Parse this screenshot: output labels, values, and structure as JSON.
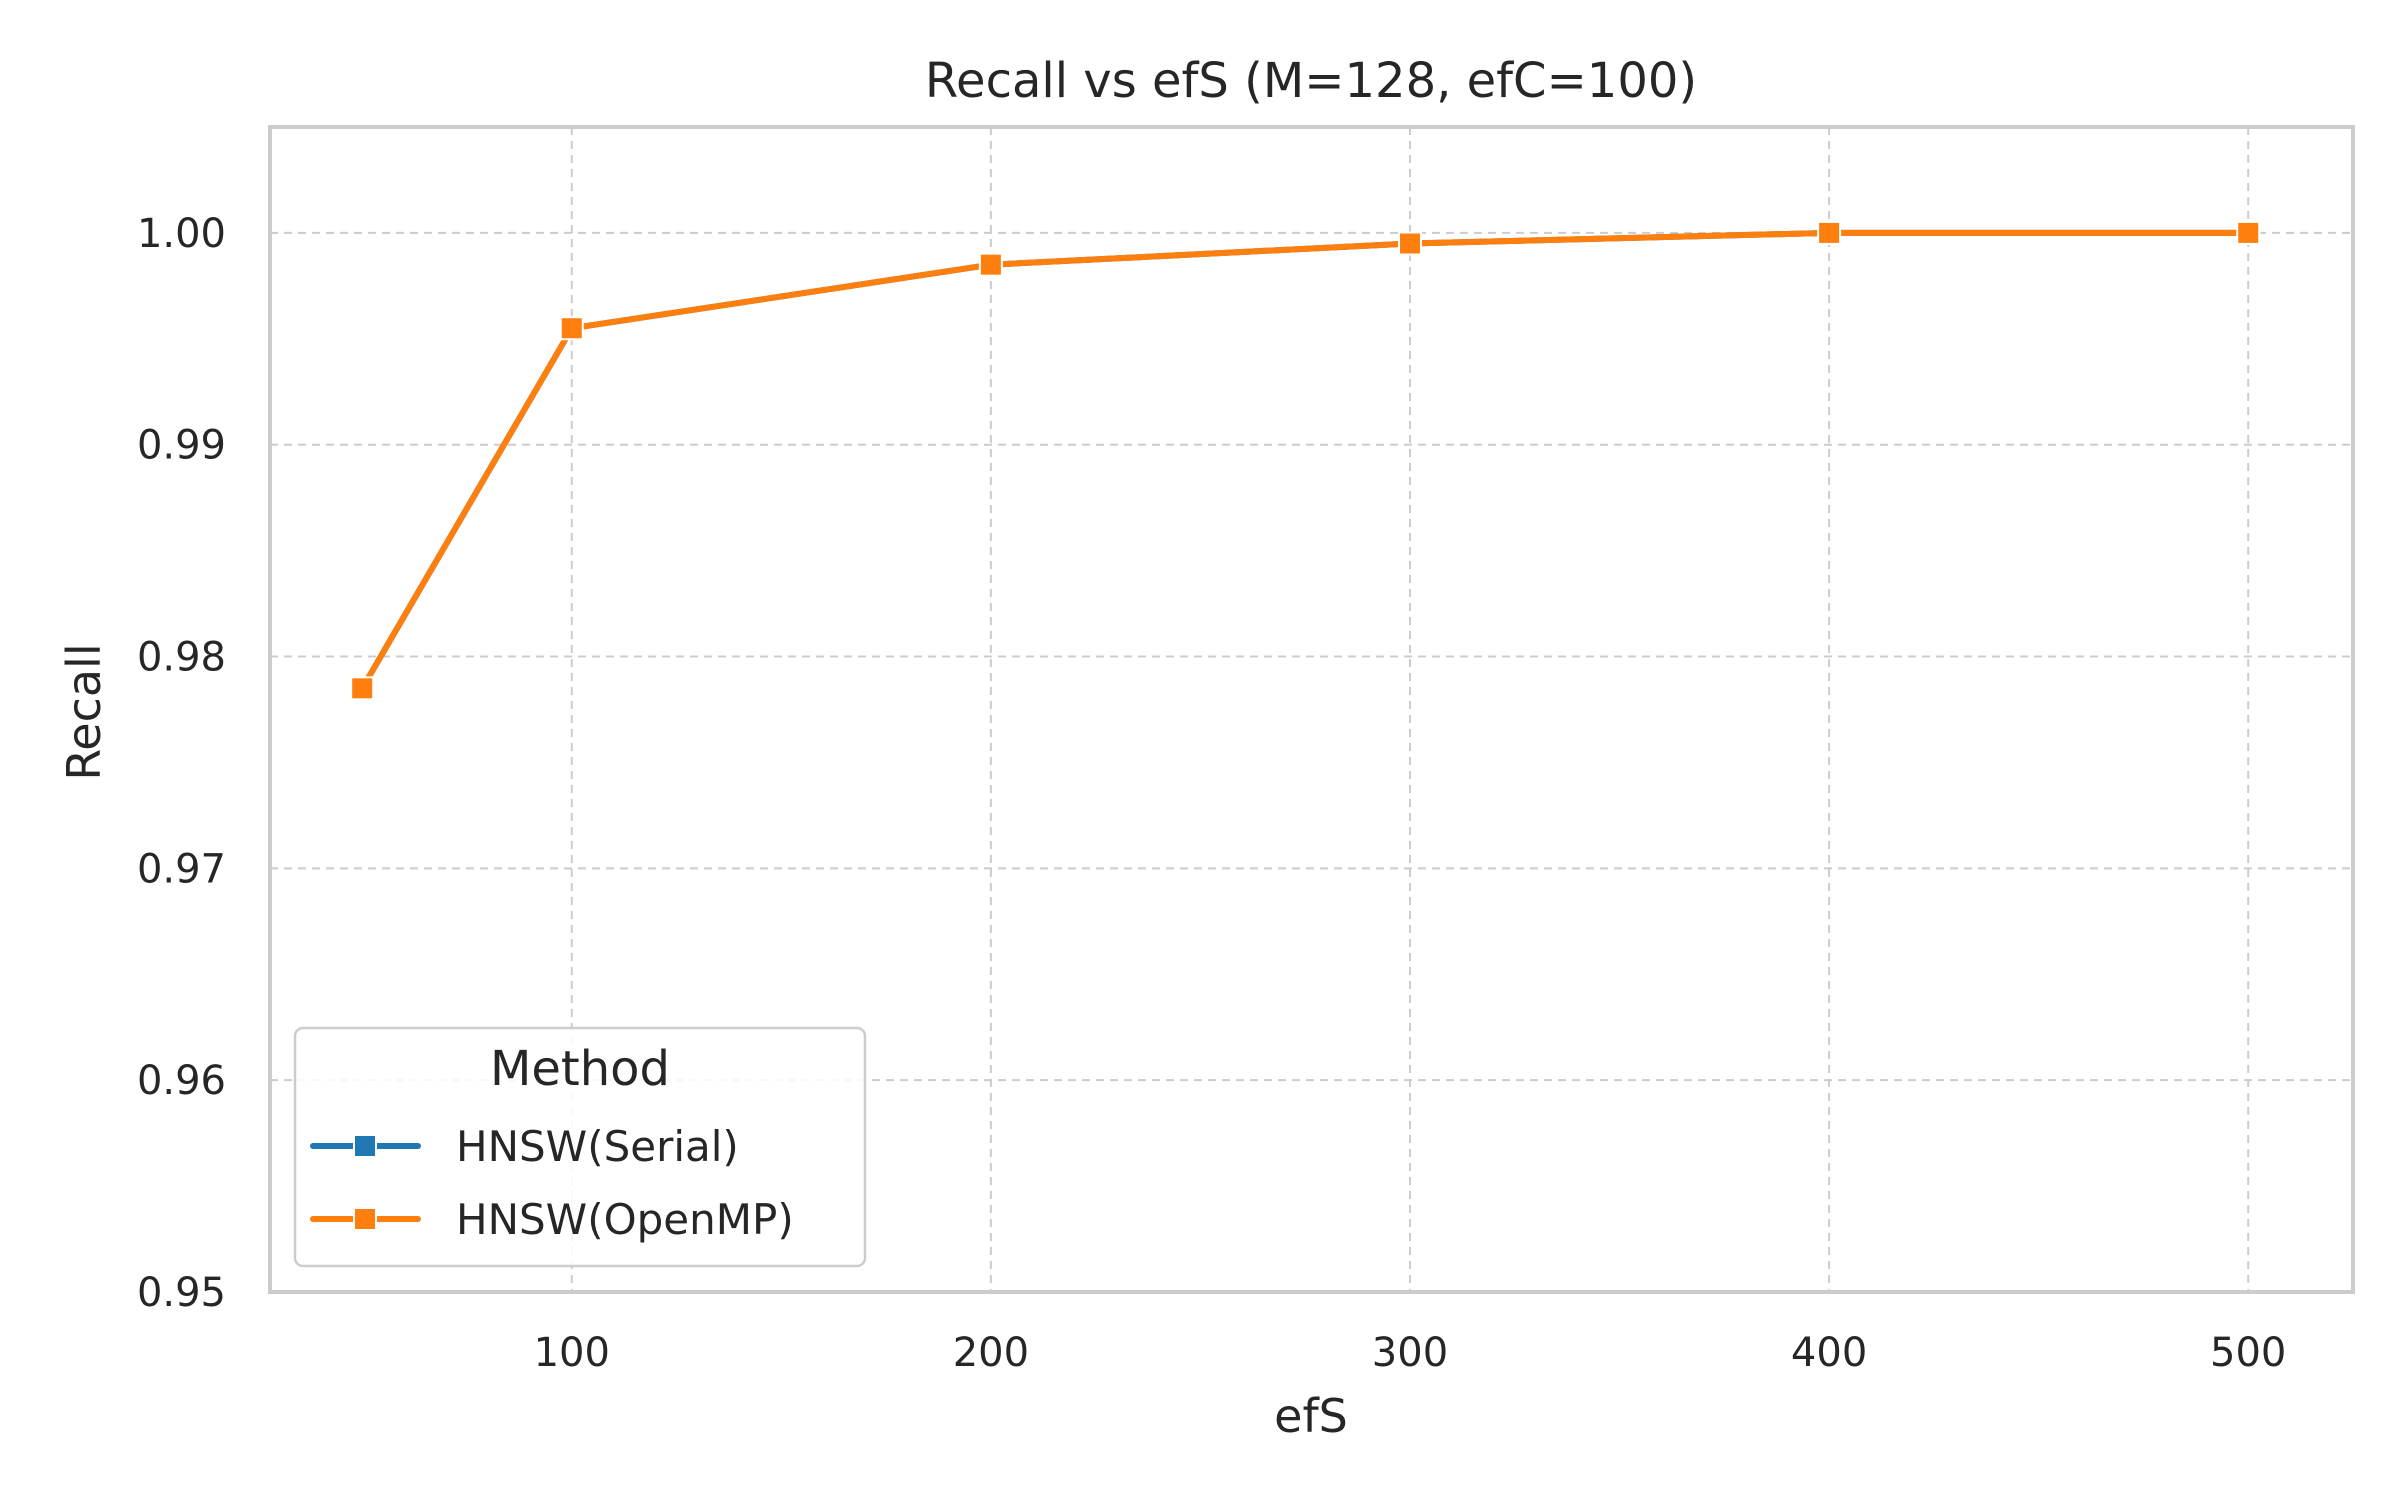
{
  "chart_data": {
    "type": "line",
    "title": "Recall vs efS (M=128, efC=100)",
    "xlabel": "efS",
    "ylabel": "Recall",
    "xlim": [
      28,
      525
    ],
    "ylim": [
      0.95,
      1.005
    ],
    "xticks": [
      100,
      200,
      300,
      400,
      500
    ],
    "yticks": [
      0.95,
      0.96,
      0.97,
      0.98,
      0.99,
      1.0
    ],
    "ytick_labels": [
      "0.95",
      "0.96",
      "0.97",
      "0.98",
      "0.99",
      "1.00"
    ],
    "grid": true,
    "legend": {
      "title": "Method",
      "position": "lower-left"
    },
    "series": [
      {
        "name": "HNSW(Serial)",
        "color": "#1f77b4",
        "marker": "square",
        "x": [
          50,
          100,
          200,
          300,
          400,
          500
        ],
        "y": [
          0.9785,
          0.9955,
          0.9985,
          0.9995,
          1.0,
          1.0
        ]
      },
      {
        "name": "HNSW(OpenMP)",
        "color": "#ff7f0e",
        "marker": "square",
        "x": [
          50,
          100,
          200,
          300,
          400,
          500
        ],
        "y": [
          0.9785,
          0.9955,
          0.9985,
          0.9995,
          1.0,
          1.0
        ]
      }
    ]
  }
}
